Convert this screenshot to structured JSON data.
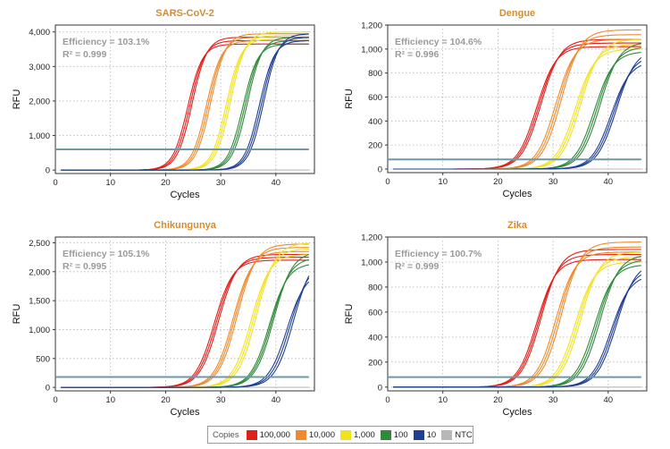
{
  "chart_data": [
    {
      "type": "line",
      "title": "SARS-CoV-2",
      "xlabel": "Cycles",
      "ylabel": "RFU",
      "xlim": [
        0,
        47
      ],
      "ylim": [
        -100,
        4200
      ],
      "xticks": [
        "10",
        "20",
        "30",
        "40"
      ],
      "yticks": [
        "0",
        "1,000",
        "2,000",
        "3,000",
        "4,000"
      ],
      "annotation": {
        "efficiency": "Efficiency = 103.1%",
        "r2": "R² = 0.999"
      },
      "threshold": 600,
      "grid": true,
      "series": [
        {
          "name": "100,000",
          "midpoints": [
            24.0,
            24.4,
            24.8
          ],
          "plateaus": [
            3650,
            3750,
            3850
          ],
          "slope": 1.35
        },
        {
          "name": "10,000",
          "midpoints": [
            27.4,
            27.8,
            28.2
          ],
          "plateaus": [
            3750,
            3850,
            3950
          ],
          "slope": 1.35
        },
        {
          "name": "1,000",
          "midpoints": [
            31.0,
            31.4,
            31.8
          ],
          "plateaus": [
            3800,
            3900,
            4000
          ],
          "slope": 1.35
        },
        {
          "name": "100",
          "midpoints": [
            34.0,
            34.4,
            34.8
          ],
          "plateaus": [
            3650,
            3750,
            3850
          ],
          "slope": 1.35
        },
        {
          "name": "10",
          "midpoints": [
            37.0,
            37.4,
            37.8
          ],
          "plateaus": [
            3750,
            3850,
            3950
          ],
          "slope": 1.35
        }
      ]
    },
    {
      "type": "line",
      "title": "Dengue",
      "xlabel": "Cycles",
      "ylabel": "RFU",
      "xlim": [
        0,
        47
      ],
      "ylim": [
        -30,
        1200
      ],
      "xticks": [
        "10",
        "20",
        "30",
        "40"
      ],
      "yticks": [
        "0",
        "200",
        "400",
        "600",
        "800",
        "1,000",
        "1,200"
      ],
      "annotation": {
        "efficiency": "Efficiency = 104.6%",
        "r2": "R² = 0.996"
      },
      "threshold": 80,
      "grid": true,
      "series": [
        {
          "name": "100,000",
          "midpoints": [
            27.0,
            27.4,
            27.8
          ],
          "plateaus": [
            1020,
            1050,
            1080
          ],
          "slope": 1.75
        },
        {
          "name": "10,000",
          "midpoints": [
            30.5,
            31.0,
            31.5
          ],
          "plateaus": [
            1080,
            1120,
            1160
          ],
          "slope": 1.75
        },
        {
          "name": "1,000",
          "midpoints": [
            34.0,
            34.5,
            35.0
          ],
          "plateaus": [
            1000,
            1040,
            1080
          ],
          "slope": 1.75
        },
        {
          "name": "100",
          "midpoints": [
            37.5,
            38.0,
            38.5
          ],
          "plateaus": [
            980,
            1020,
            1060
          ],
          "slope": 1.75
        },
        {
          "name": "10",
          "midpoints": [
            40.5,
            41.0,
            41.5
          ],
          "plateaus": [
            900,
            950,
            1000
          ],
          "slope": 1.75
        }
      ]
    },
    {
      "type": "line",
      "title": "Chikungunya",
      "xlabel": "Cycles",
      "ylabel": "RFU",
      "xlim": [
        0,
        47
      ],
      "ylim": [
        -60,
        2600
      ],
      "xticks": [
        "10",
        "20",
        "30",
        "40"
      ],
      "yticks": [
        "0",
        "500",
        "1,000",
        "1,500",
        "2,000",
        "2,500"
      ],
      "annotation": {
        "efficiency": "Efficiency = 105.1%",
        "r2": "R² = 0.995"
      },
      "threshold": 180,
      "grid": true,
      "series": [
        {
          "name": "100,000",
          "midpoints": [
            28.8,
            29.2,
            29.6
          ],
          "plateaus": [
            2200,
            2250,
            2300
          ],
          "slope": 1.7
        },
        {
          "name": "10,000",
          "midpoints": [
            32.2,
            32.6,
            33.0
          ],
          "plateaus": [
            2350,
            2420,
            2480
          ],
          "slope": 1.7
        },
        {
          "name": "1,000",
          "midpoints": [
            35.5,
            36.0,
            36.5
          ],
          "plateaus": [
            2300,
            2400,
            2500
          ],
          "slope": 1.7
        },
        {
          "name": "100",
          "midpoints": [
            38.8,
            39.2,
            39.6
          ],
          "plateaus": [
            2150,
            2250,
            2350
          ],
          "slope": 1.7
        },
        {
          "name": "10",
          "midpoints": [
            42.0,
            42.6,
            43.2
          ],
          "plateaus": [
            2000,
            2150,
            2300
          ],
          "slope": 1.7
        }
      ]
    },
    {
      "type": "line",
      "title": "Zika",
      "xlabel": "Cycles",
      "ylabel": "RFU",
      "xlim": [
        0,
        47
      ],
      "ylim": [
        -30,
        1200
      ],
      "xticks": [
        "10",
        "20",
        "30",
        "40"
      ],
      "yticks": [
        "0",
        "200",
        "400",
        "600",
        "800",
        "1,000",
        "1,200"
      ],
      "annotation": {
        "efficiency": "Efficiency = 100.7%",
        "r2": "R² = 0.999"
      },
      "threshold": 80,
      "grid": true,
      "series": [
        {
          "name": "100,000",
          "midpoints": [
            27.0,
            27.4,
            27.8
          ],
          "plateaus": [
            1020,
            1060,
            1100
          ],
          "slope": 1.75
        },
        {
          "name": "10,000",
          "midpoints": [
            30.5,
            31.0,
            31.5
          ],
          "plateaus": [
            1080,
            1120,
            1160
          ],
          "slope": 1.75
        },
        {
          "name": "1,000",
          "midpoints": [
            34.0,
            34.5,
            35.0
          ],
          "plateaus": [
            1000,
            1040,
            1080
          ],
          "slope": 1.75
        },
        {
          "name": "100",
          "midpoints": [
            37.5,
            38.0,
            38.5
          ],
          "plateaus": [
            980,
            1020,
            1060
          ],
          "slope": 1.75
        },
        {
          "name": "10",
          "midpoints": [
            40.5,
            41.0,
            41.5
          ],
          "plateaus": [
            900,
            950,
            1000
          ],
          "slope": 1.75
        }
      ]
    }
  ],
  "legend": {
    "title": "Copies",
    "items": [
      {
        "label": "100,000",
        "color": "#e0201b"
      },
      {
        "label": "10,000",
        "color": "#ee8a2c"
      },
      {
        "label": "1,000",
        "color": "#f2e21c"
      },
      {
        "label": "100",
        "color": "#2e8a38"
      },
      {
        "label": "10",
        "color": "#1f3f93"
      },
      {
        "label": "NTC",
        "color": "#b8b8b8"
      }
    ]
  },
  "colors": {
    "title": "#d98b2b",
    "threshold": "#6f97a8",
    "annotation": "#9a9a9a",
    "axis": "#333333",
    "grid": "#b5b5b5"
  }
}
